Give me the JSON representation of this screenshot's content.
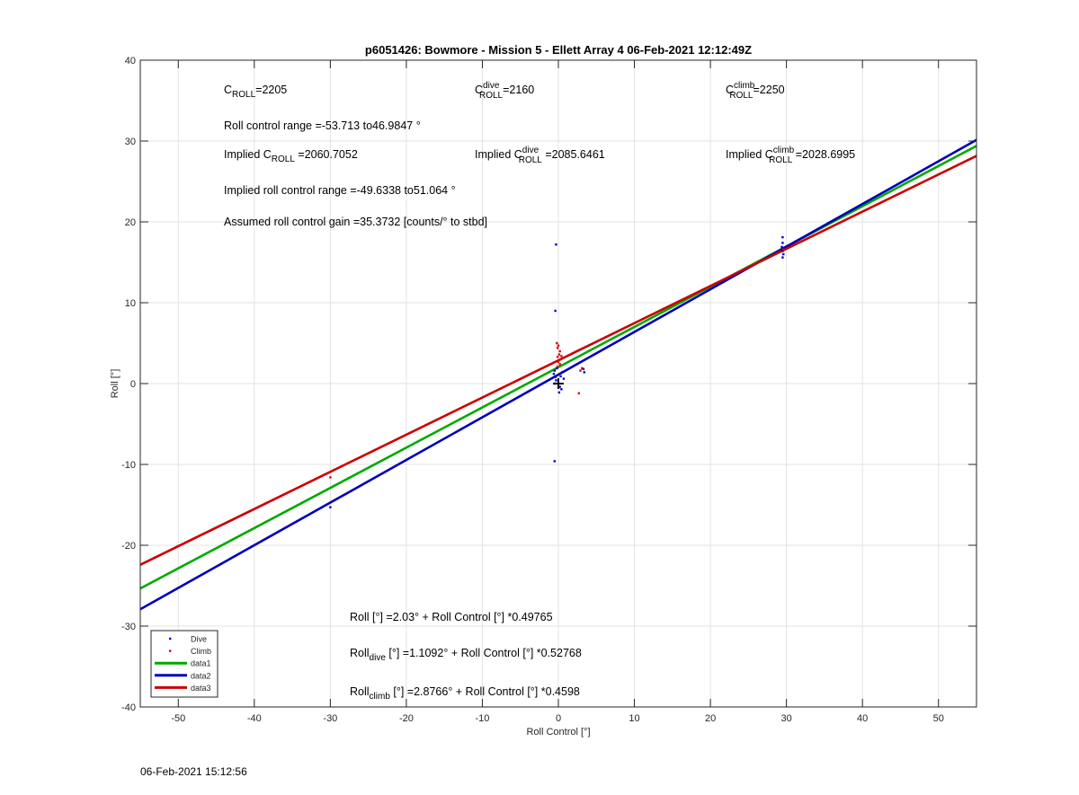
{
  "chart_data": {
    "type": "scatter",
    "title": "p6051426: Bowmore - Mission 5 - Ellett Array 4 06-Feb-2021 12:12:49Z",
    "xlabel": "Roll Control [°]",
    "ylabel": "Roll [°]",
    "xlim": [
      -55,
      55
    ],
    "ylim": [
      -40,
      40
    ],
    "xticks": [
      -50,
      -40,
      -30,
      -20,
      -10,
      0,
      10,
      20,
      30,
      40,
      50
    ],
    "yticks": [
      -40,
      -30,
      -20,
      -10,
      0,
      10,
      20,
      30,
      40
    ],
    "grid": true,
    "legend_position": "bottom-left",
    "legend": [
      {
        "label": "Dive",
        "color": "#0000cc",
        "kind": "marker"
      },
      {
        "label": "Climb",
        "color": "#dd0000",
        "kind": "marker"
      },
      {
        "label": "data1",
        "color": "#00aa00",
        "kind": "line"
      },
      {
        "label": "data2",
        "color": "#0000bb",
        "kind": "line"
      },
      {
        "label": "data3",
        "color": "#cc0000",
        "kind": "line"
      }
    ],
    "lines": [
      {
        "name": "data1",
        "color": "#00aa00",
        "intercept": 2.03,
        "slope": 0.49765
      },
      {
        "name": "data2",
        "color": "#0000bb",
        "intercept": 1.1092,
        "slope": 0.52768
      },
      {
        "name": "data3",
        "color": "#cc0000",
        "intercept": 2.8766,
        "slope": 0.4598
      }
    ],
    "series": [
      {
        "name": "Dive",
        "color": "#0000cc",
        "points": [
          [
            -0.3,
            17.2
          ],
          [
            -0.4,
            9.0
          ],
          [
            -0.5,
            -9.6
          ],
          [
            -30.0,
            -15.3
          ],
          [
            -0.5,
            1.6
          ],
          [
            -0.6,
            1.2
          ],
          [
            -0.4,
            0.8
          ],
          [
            -0.3,
            0.4
          ],
          [
            -0.5,
            0.0
          ],
          [
            0.2,
            -0.4
          ],
          [
            0.1,
            -1.1
          ],
          [
            0.3,
            0.9
          ],
          [
            0.5,
            1.4
          ],
          [
            0.7,
            0.6
          ],
          [
            -0.2,
            1.9
          ],
          [
            0.4,
            -0.7
          ],
          [
            3.3,
            1.8
          ],
          [
            3.4,
            1.4
          ],
          [
            29.5,
            18.1
          ],
          [
            29.5,
            17.4
          ],
          [
            29.4,
            16.9
          ],
          [
            29.5,
            16.4
          ],
          [
            29.6,
            16.0
          ],
          [
            29.5,
            15.6
          ]
        ]
      },
      {
        "name": "Climb",
        "color": "#dd0000",
        "points": [
          [
            -0.2,
            5.0
          ],
          [
            0.0,
            4.7
          ],
          [
            -0.1,
            4.4
          ],
          [
            0.2,
            4.0
          ],
          [
            0.1,
            3.6
          ],
          [
            -0.1,
            3.3
          ],
          [
            0.3,
            3.0
          ],
          [
            0.0,
            2.7
          ],
          [
            0.2,
            2.4
          ],
          [
            -0.1,
            2.1
          ],
          [
            0.4,
            3.4
          ],
          [
            2.9,
            1.6
          ],
          [
            3.1,
            1.9
          ],
          [
            2.7,
            -1.2
          ],
          [
            -30.0,
            -11.6
          ],
          [
            29.6,
            16.6
          ]
        ]
      }
    ],
    "marker_points": [
      [
        0,
        0
      ]
    ],
    "annotations": {
      "c_roll": {
        "main": "C",
        "sub": "ROLL",
        "value": "=2205"
      },
      "c_roll_dive": {
        "main": "C",
        "sup": "dive",
        "sub": "ROLL",
        "value": "=2160"
      },
      "c_roll_climb": {
        "main": "C",
        "sup": "climb",
        "sub": "ROLL",
        "value": "=2250"
      },
      "roll_range": "Roll control range =-53.713 to46.9847 °",
      "implied_c_roll": {
        "main": "Implied C",
        "sub": "ROLL",
        "value": " =2060.7052"
      },
      "implied_c_roll_dive": {
        "main": "Implied C",
        "sup": "dive",
        "sub": "ROLL",
        "value": " =2085.6461"
      },
      "implied_c_roll_climb": {
        "main": "Implied C",
        "sup": "climb",
        "sub": "ROLL",
        "value": " =2028.6995"
      },
      "implied_range": "Implied roll control range =-49.6338 to51.064 °",
      "gain": "Assumed roll control gain =35.3732 [counts/° to stbd]",
      "fit_all": "Roll [°] =2.03° + Roll Control [°] *0.49765",
      "fit_dive": {
        "main": "Roll",
        "sub": "dive",
        "value": " [°] =1.1092° + Roll Control [°] *0.52768"
      },
      "fit_climb": {
        "main": "Roll",
        "sub": "climb",
        "value": " [°] =2.8766° + Roll Control [°] *0.4598"
      }
    }
  },
  "footer_timestamp": "06-Feb-2021 15:12:56"
}
